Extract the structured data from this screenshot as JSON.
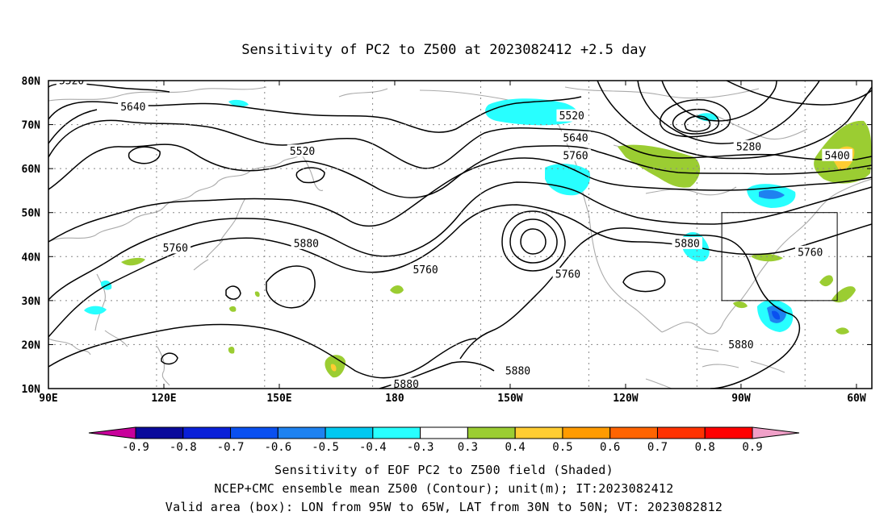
{
  "title": "Sensitivity of PC2 to Z500 at 2023082412 +2.5 day",
  "axes": {
    "lat_labels": [
      "80N",
      "70N",
      "60N",
      "50N",
      "40N",
      "30N",
      "20N",
      "10N"
    ],
    "lon_labels": [
      "90E",
      "120E",
      "150E",
      "180",
      "150W",
      "120W",
      "90W",
      "60W"
    ]
  },
  "contour_labels": [
    {
      "text": "5520",
      "lon": 96,
      "lat": 80
    },
    {
      "text": "5640",
      "lon": 112,
      "lat": 74
    },
    {
      "text": "5520",
      "lon": 156,
      "lat": 64
    },
    {
      "text": "5520",
      "lon": -134,
      "lat": 72
    },
    {
      "text": "5640",
      "lon": -133,
      "lat": 67
    },
    {
      "text": "5760",
      "lon": -133,
      "lat": 63
    },
    {
      "text": "5280",
      "lon": -88,
      "lat": 65
    },
    {
      "text": "5400",
      "lon": -65,
      "lat": 63
    },
    {
      "text": "5760",
      "lon": 123,
      "lat": 42
    },
    {
      "text": "5880",
      "lon": 157,
      "lat": 43
    },
    {
      "text": "5760",
      "lon": -172,
      "lat": 37
    },
    {
      "text": "5760",
      "lon": -135,
      "lat": 36
    },
    {
      "text": "5880",
      "lon": -104,
      "lat": 43
    },
    {
      "text": "5760",
      "lon": -72,
      "lat": 41
    },
    {
      "text": "5880",
      "lon": -90,
      "lat": 20
    },
    {
      "text": "5880",
      "lon": -177,
      "lat": 11
    },
    {
      "text": "5880",
      "lon": -148,
      "lat": 14
    }
  ],
  "colorbar": {
    "colors": [
      "#c8009b",
      "#0a0a9b",
      "#0a20d8",
      "#0a50f0",
      "#1e82f0",
      "#00c8f0",
      "#28ffff",
      "#ffffff",
      "#9bcd32",
      "#ffcd32",
      "#ff9b00",
      "#ff6400",
      "#ff3200",
      "#ff0000",
      "#f0a0c8"
    ],
    "labels": [
      "-0.9",
      "-0.8",
      "-0.7",
      "-0.6",
      "-0.5",
      "-0.4",
      "-0.3",
      "0.3",
      "0.4",
      "0.5",
      "0.6",
      "0.7",
      "0.8",
      "0.9"
    ]
  },
  "valid_box": {
    "lon_min": -95,
    "lon_max": -65,
    "lat_min": 30,
    "lat_max": 50
  },
  "captions": {
    "line1": "Sensitivity of EOF PC2 to Z500 field (Shaded)",
    "line2": "NCEP+CMC ensemble mean Z500 (Contour); unit(m); IT:2023082412",
    "line3": "Valid area (box): LON from 95W to 65W, LAT from 30N to 50N; VT: 2023082812"
  }
}
